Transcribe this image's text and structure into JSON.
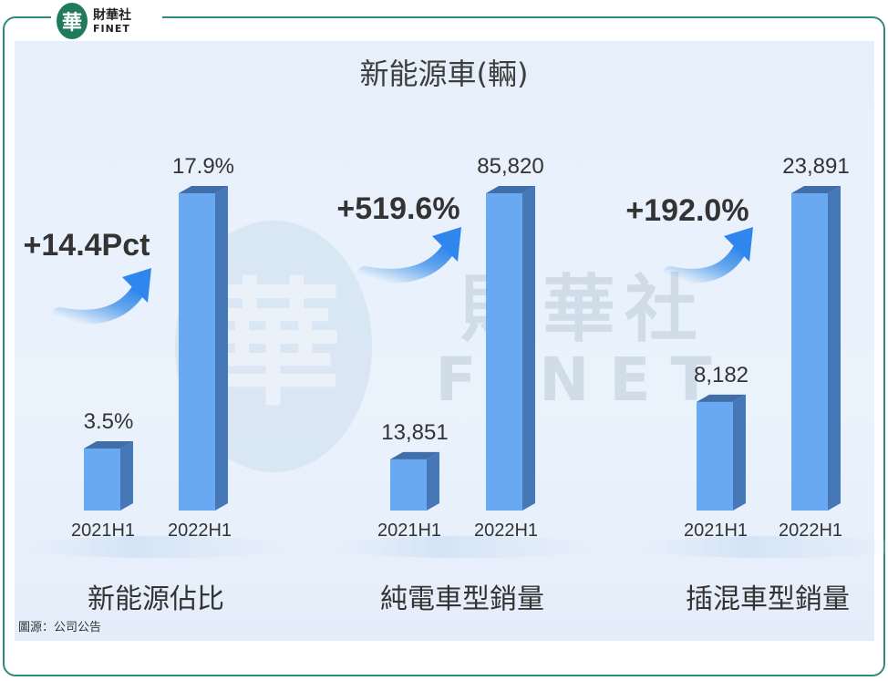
{
  "logo": {
    "mark": "華",
    "name_cn": "財華社",
    "name_en": "FINET"
  },
  "title": "新能源車(輛)",
  "source": "圖源：公司公告",
  "watermark": {
    "cn": "財華社",
    "en": "FINET",
    "mark": "華"
  },
  "colors": {
    "bar_front": "#69a9f2",
    "bar_side": "#4678b8",
    "bar_top": "#3f6ea8",
    "frame": "#2f8a7e",
    "arrow": "#3b8fe8"
  },
  "chart_data": [
    {
      "type": "bar",
      "categories": [
        "2021H1",
        "2022H1"
      ],
      "values": [
        3.5,
        17.9
      ],
      "value_labels": [
        "3.5%",
        "17.9%"
      ],
      "xlabel": "新能源佔比",
      "change_label": "+14.4Pct"
    },
    {
      "type": "bar",
      "categories": [
        "2021H1",
        "2022H1"
      ],
      "values": [
        13851,
        85820
      ],
      "value_labels": [
        "13,851",
        "85,820"
      ],
      "xlabel": "純電車型銷量",
      "change_label": "+519.6%"
    },
    {
      "type": "bar",
      "categories": [
        "2021H1",
        "2022H1"
      ],
      "values": [
        8182,
        23891
      ],
      "value_labels": [
        "8,182",
        "23,891"
      ],
      "xlabel": "插混車型銷量",
      "change_label": "+192.0%"
    }
  ]
}
